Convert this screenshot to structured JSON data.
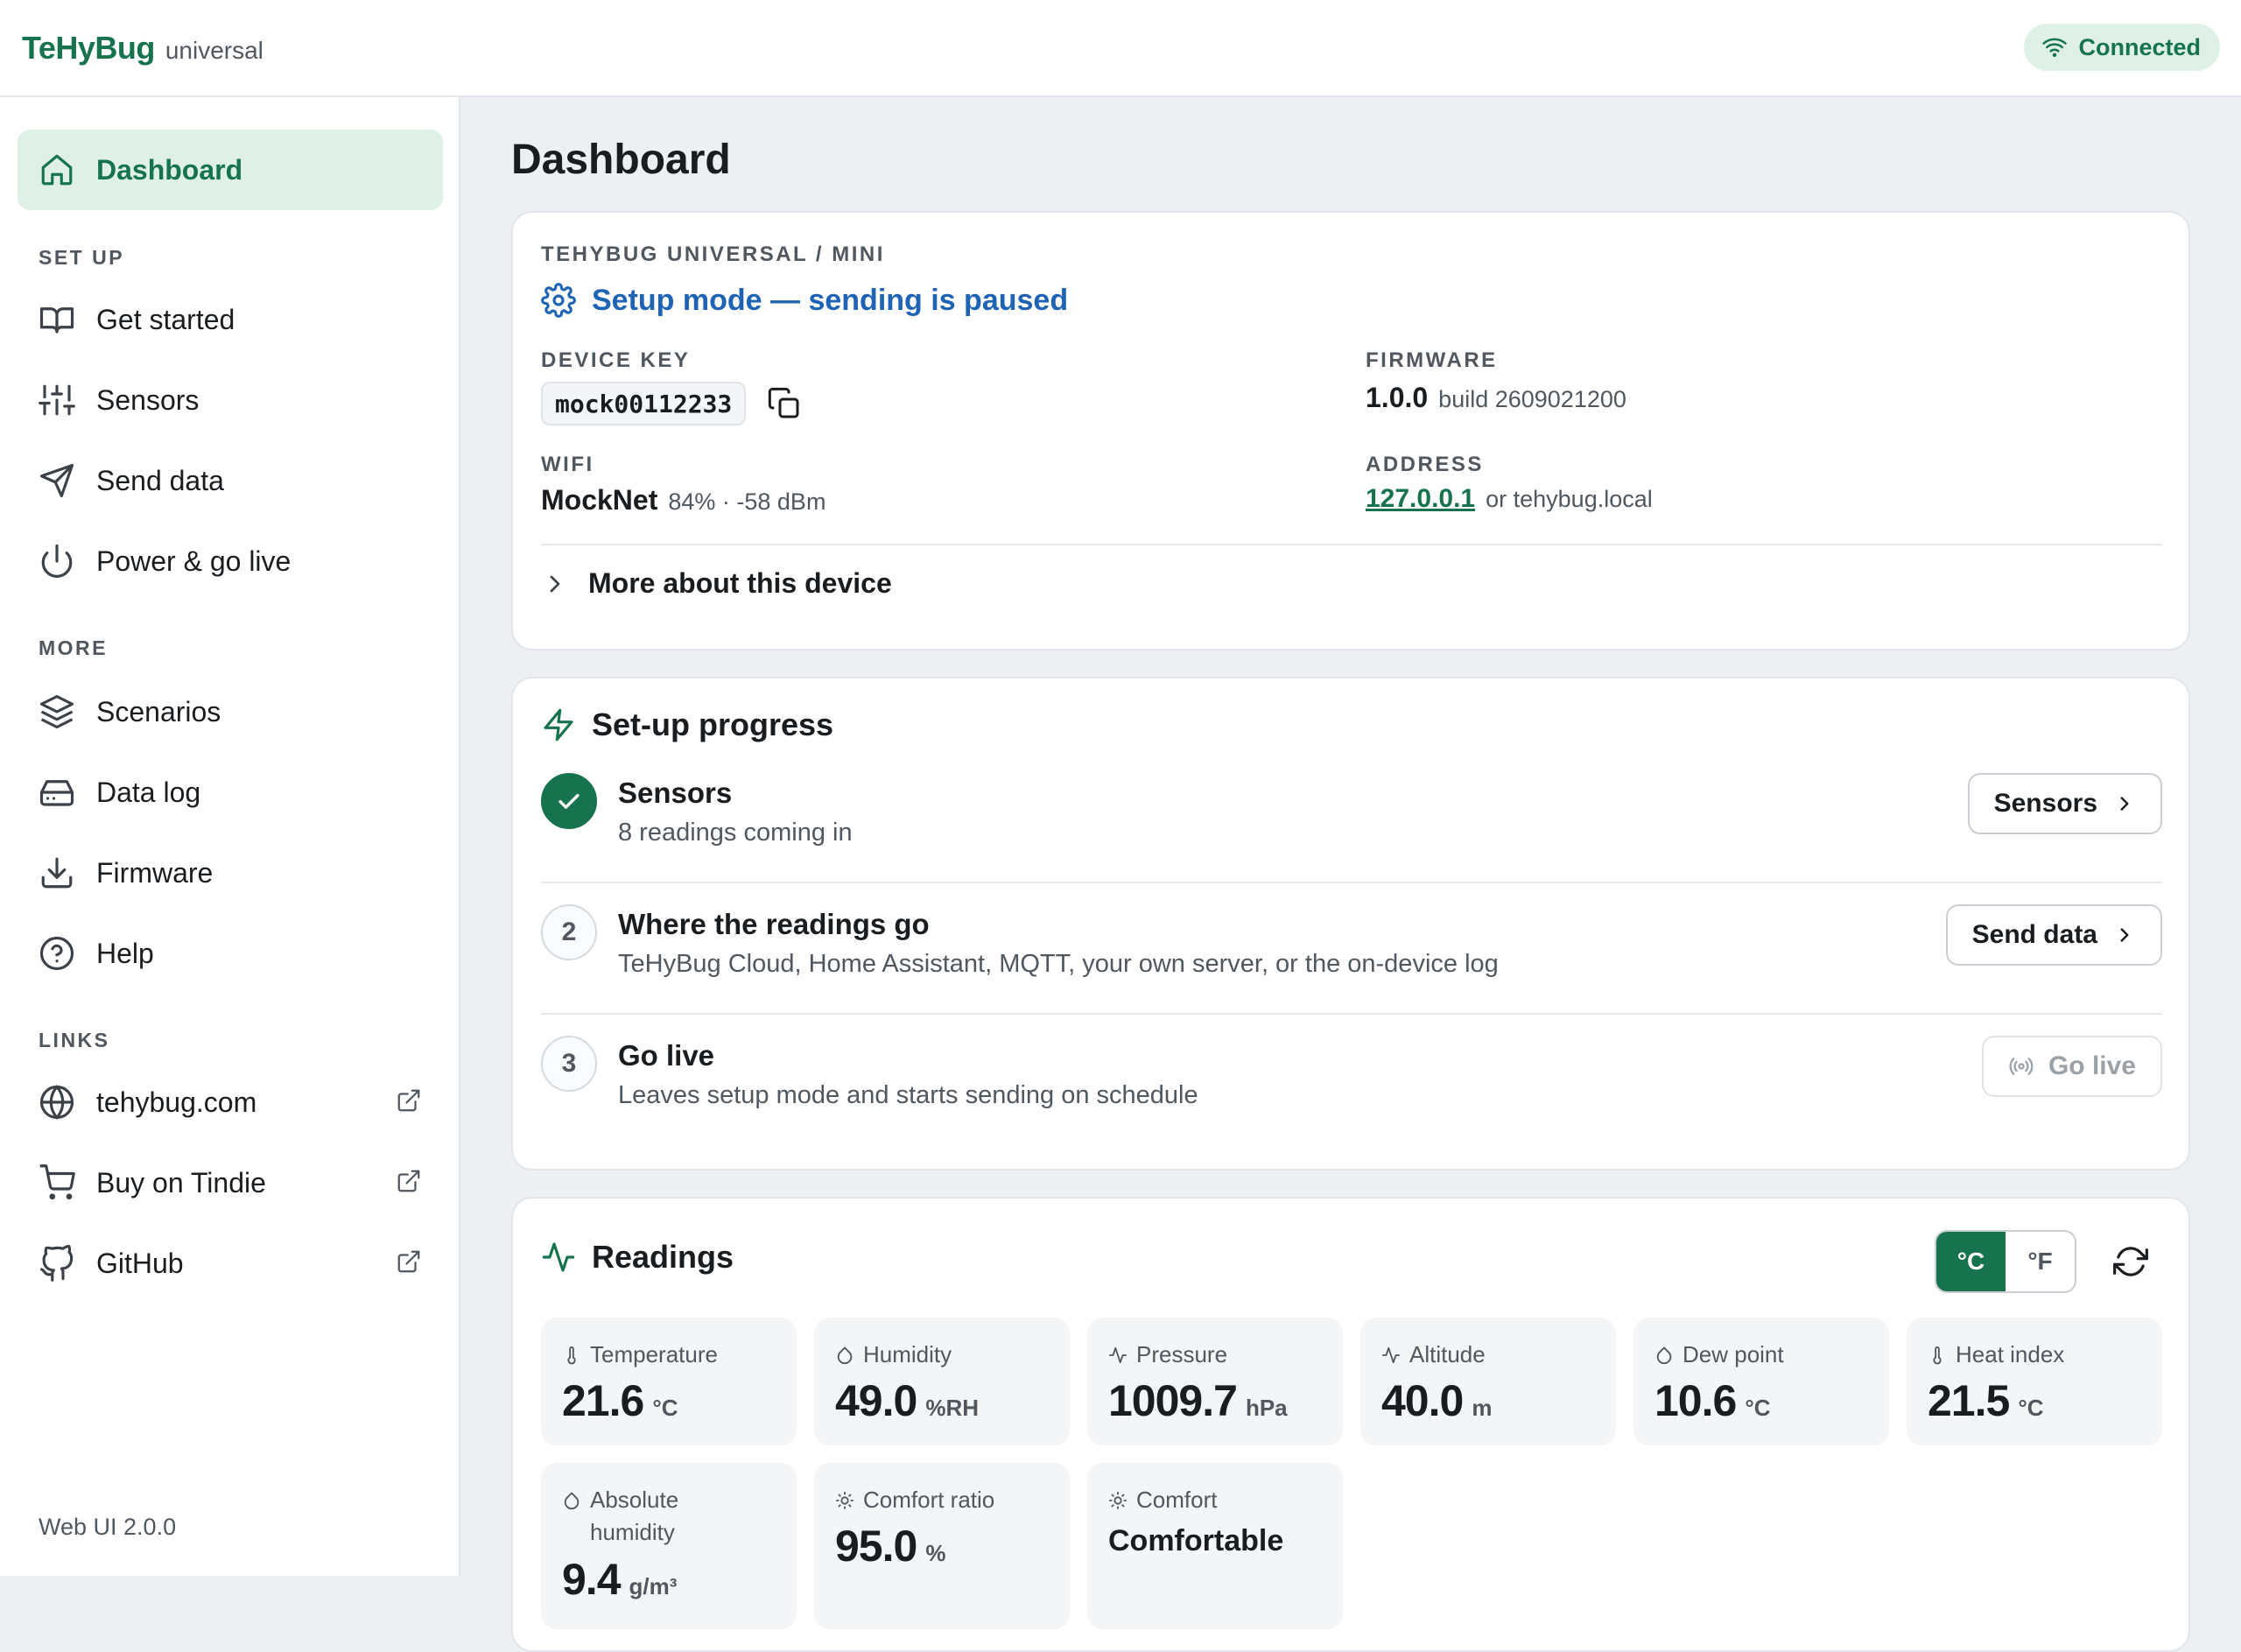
{
  "header": {
    "brand_name": "TeHyBug",
    "brand_variant": "universal",
    "status": "Connected"
  },
  "sidebar": {
    "active_item": "Dashboard",
    "sections": {
      "setup": "SET UP",
      "more": "MORE",
      "links": "LINKS"
    },
    "items": {
      "dashboard": "Dashboard",
      "get_started": "Get started",
      "sensors": "Sensors",
      "send_data": "Send data",
      "power_go_live": "Power & go live",
      "scenarios": "Scenarios",
      "data_log": "Data log",
      "firmware": "Firmware",
      "help": "Help",
      "tehybug_com": "tehybug.com",
      "buy_on_tindie": "Buy on Tindie",
      "github": "GitHub"
    },
    "version": "Web UI 2.0.0"
  },
  "main": {
    "page_title": "Dashboard",
    "device": {
      "model": "TEHYBUG UNIVERSAL / MINI",
      "mode": "Setup mode — sending is paused",
      "device_key_label": "DEVICE KEY",
      "device_key": "mock00112233",
      "firmware_label": "FIRMWARE",
      "firmware_version": "1.0.0",
      "firmware_build": "build 2609021200",
      "wifi_label": "WIFI",
      "wifi_ssid": "MockNet",
      "wifi_signal": "84% · -58 dBm",
      "address_label": "ADDRESS",
      "address_ip": "127.0.0.1",
      "address_alt": "or tehybug.local",
      "more_label": "More about this device"
    },
    "progress": {
      "title": "Set-up progress",
      "steps": [
        {
          "badge": "",
          "title": "Sensors",
          "desc": "8 readings coming in",
          "button": "Sensors",
          "status": "done"
        },
        {
          "badge": "2",
          "title": "Where the readings go",
          "desc": "TeHyBug Cloud, Home Assistant, MQTT, your own server, or the on-device log",
          "button": "Send data",
          "status": "pending"
        },
        {
          "badge": "3",
          "title": "Go live",
          "desc": "Leaves setup mode and starts sending on schedule",
          "button": "Go live",
          "status": "disabled"
        }
      ]
    },
    "readings": {
      "title": "Readings",
      "unit_c": "°C",
      "unit_f": "°F",
      "selected_unit": "°C",
      "tiles": [
        {
          "label": "Temperature",
          "value": "21.6",
          "unit": "°C",
          "icon": "thermometer-icon"
        },
        {
          "label": "Humidity",
          "value": "49.0",
          "unit": "%RH",
          "icon": "droplet-icon"
        },
        {
          "label": "Pressure",
          "value": "1009.7",
          "unit": "hPa",
          "icon": "pulse-icon"
        },
        {
          "label": "Altitude",
          "value": "40.0",
          "unit": "m",
          "icon": "pulse-icon"
        },
        {
          "label": "Dew point",
          "value": "10.6",
          "unit": "°C",
          "icon": "droplet-icon"
        },
        {
          "label": "Heat index",
          "value": "21.5",
          "unit": "°C",
          "icon": "thermometer-icon"
        },
        {
          "label": "Absolute humidity",
          "value": "9.4",
          "unit": "g/m³",
          "icon": "droplet-icon"
        },
        {
          "label": "Comfort ratio",
          "value": "95.0",
          "unit": "%",
          "icon": "sun-icon"
        },
        {
          "label": "Comfort",
          "value": "Comfortable",
          "unit": "",
          "icon": "sun-icon"
        }
      ]
    }
  },
  "colors": {
    "accent": "#17734e",
    "accent_bg": "#dff1e6",
    "setup_blue": "#1f63b5"
  }
}
